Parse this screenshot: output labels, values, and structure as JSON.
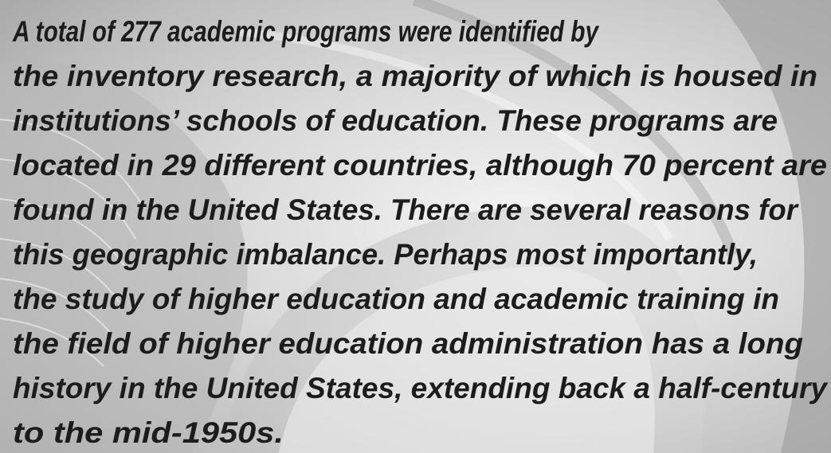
{
  "paragraph": {
    "lines": [
      "A total of 277 academic programs were identified by",
      "the inventory research, a majority of which is housed in",
      "institutions’ schools of education. These programs are",
      "located in 29 different countries, although 70 percent are",
      "found in the United States. There are several reasons for",
      "this geographic imbalance. Perhaps most importantly,",
      "the study of higher education and academic training in",
      "the field of higher education administration has a long",
      "history in the United States, extending back a half-century",
      "to the mid-1950s."
    ]
  }
}
